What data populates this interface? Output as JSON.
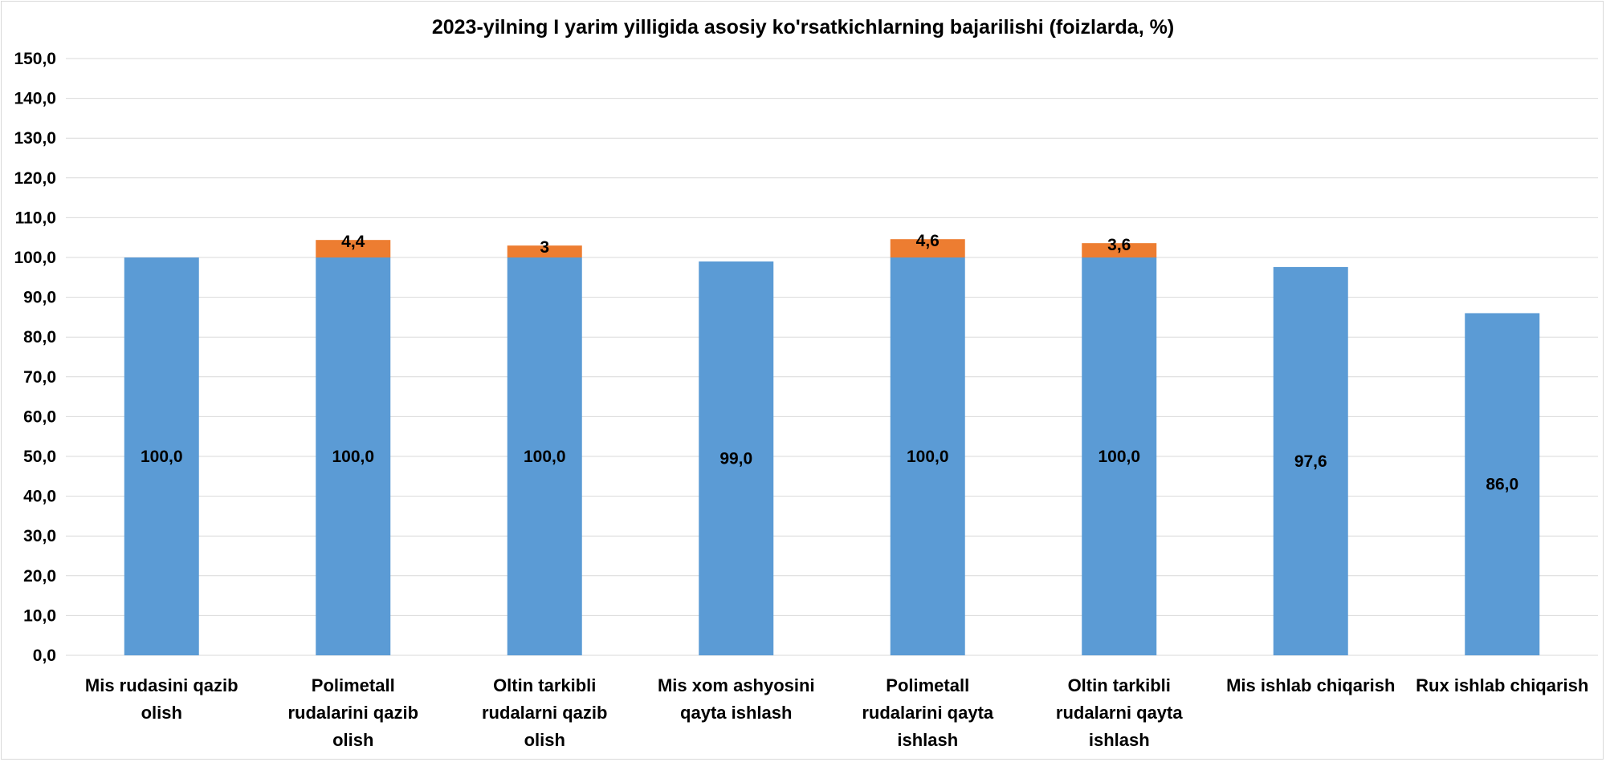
{
  "chart_data": {
    "type": "bar",
    "stacked": true,
    "title": "2023-yilning I yarim yilligida asosiy ko'rsatkichlarning bajarilishi (foizlarda, %)",
    "categories": [
      [
        "Mis rudasini qazib",
        "olish"
      ],
      [
        "Polimetall",
        "rudalarini qazib",
        "olish"
      ],
      [
        "Oltin tarkibli",
        "rudalarni qazib",
        "olish"
      ],
      [
        "Mis xom ashyosini",
        "qayta ishlash"
      ],
      [
        "Polimetall",
        "rudalarini qayta",
        "ishlash"
      ],
      [
        "Oltin tarkibli",
        "rudalarni qayta",
        "ishlash"
      ],
      [
        "Mis ishlab chiqarish"
      ],
      [
        "Rux ishlab chiqarish"
      ]
    ],
    "series": [
      {
        "color": "#5b9bd5",
        "values": [
          100.0,
          100.0,
          100.0,
          99.0,
          100.0,
          100.0,
          97.6,
          86.0
        ],
        "labels": [
          "100,0",
          "100,0",
          "100,0",
          "99,0",
          "100,0",
          "100,0",
          "97,6",
          "86,0"
        ]
      },
      {
        "color": "#ed7d31",
        "values": [
          0,
          4.4,
          3,
          0,
          4.6,
          3.6,
          0,
          0
        ],
        "labels": [
          "",
          "4,4",
          "3",
          "",
          "4,6",
          "3,6",
          "",
          ""
        ]
      }
    ],
    "ylim": [
      0,
      150
    ],
    "yticks": [
      "0,0",
      "10,0",
      "20,0",
      "30,0",
      "40,0",
      "50,0",
      "60,0",
      "70,0",
      "80,0",
      "90,0",
      "100,0",
      "110,0",
      "120,0",
      "130,0",
      "140,0",
      "150,0"
    ],
    "grid": true,
    "gridColor": "#d9d9d9",
    "legend": "none"
  }
}
